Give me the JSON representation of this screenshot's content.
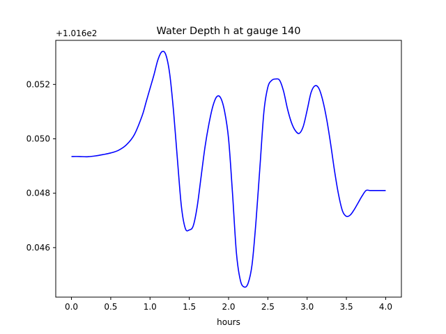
{
  "chart_data": {
    "type": "line",
    "title": "Water Depth h at gauge 140",
    "xlabel": "hours",
    "ylabel": "",
    "y_offset_label": "+1.016e2",
    "y_offset": 101.6,
    "xlim": [
      -0.2,
      4.2
    ],
    "ylim": [
      0.04418,
      0.05362
    ],
    "x_ticks": [
      0.0,
      0.5,
      1.0,
      1.5,
      2.0,
      2.5,
      3.0,
      3.5,
      4.0
    ],
    "x_tick_labels": [
      "0.0",
      "0.5",
      "1.0",
      "1.5",
      "2.0",
      "2.5",
      "3.0",
      "3.5",
      "4.0"
    ],
    "y_ticks": [
      0.046,
      0.048,
      0.05,
      0.052
    ],
    "y_tick_labels": [
      "0.046",
      "0.048",
      "0.050",
      "0.052"
    ],
    "grid": false,
    "series": [
      {
        "color": "#0000ff",
        "x": [
          0.0,
          0.1,
          0.2,
          0.3,
          0.4,
          0.5,
          0.6,
          0.7,
          0.8,
          0.9,
          0.95,
          1.0,
          1.05,
          1.1,
          1.15,
          1.2,
          1.25,
          1.3,
          1.35,
          1.4,
          1.45,
          1.5,
          1.55,
          1.6,
          1.65,
          1.7,
          1.75,
          1.8,
          1.85,
          1.9,
          1.95,
          2.0,
          2.05,
          2.1,
          2.15,
          2.2,
          2.25,
          2.3,
          2.35,
          2.4,
          2.45,
          2.5,
          2.55,
          2.6,
          2.65,
          2.7,
          2.75,
          2.8,
          2.85,
          2.9,
          2.95,
          3.0,
          3.05,
          3.1,
          3.15,
          3.2,
          3.25,
          3.3,
          3.35,
          3.4,
          3.45,
          3.5,
          3.55,
          3.6,
          3.65,
          3.7,
          3.75,
          3.8,
          3.85,
          3.9,
          3.95,
          4.0
        ],
        "y": [
          0.04935,
          0.04935,
          0.04934,
          0.04937,
          0.04942,
          0.04948,
          0.04958,
          0.04978,
          0.05015,
          0.05085,
          0.05135,
          0.05185,
          0.05235,
          0.0529,
          0.0532,
          0.0531,
          0.0524,
          0.051,
          0.0492,
          0.0475,
          0.0467,
          0.04665,
          0.0468,
          0.0475,
          0.0486,
          0.0497,
          0.05055,
          0.0512,
          0.05155,
          0.0515,
          0.051,
          0.05,
          0.048,
          0.0458,
          0.0448,
          0.04455,
          0.0447,
          0.0454,
          0.047,
          0.049,
          0.051,
          0.0519,
          0.05215,
          0.0522,
          0.05215,
          0.05175,
          0.0511,
          0.0506,
          0.0503,
          0.0502,
          0.05045,
          0.05105,
          0.0517,
          0.05195,
          0.05185,
          0.0514,
          0.0507,
          0.0498,
          0.0488,
          0.04795,
          0.04735,
          0.04715,
          0.0472,
          0.0474,
          0.04765,
          0.0479,
          0.0481,
          0.0481,
          0.0481,
          0.0481,
          0.0481,
          0.0481
        ]
      }
    ]
  }
}
